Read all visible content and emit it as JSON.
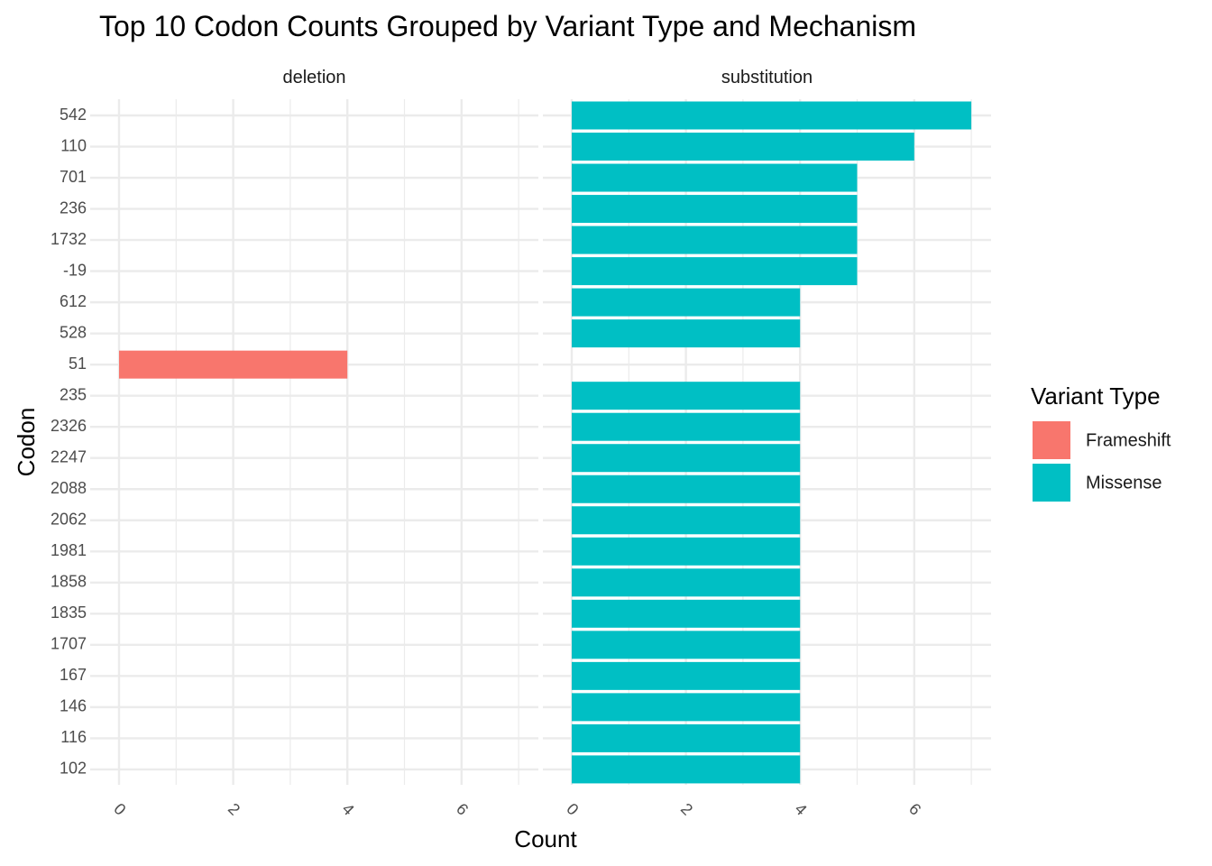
{
  "chart_data": {
    "type": "bar",
    "orientation": "horizontal",
    "title": "Top 10 Codon Counts Grouped by Variant Type and Mechanism",
    "xlabel": "Count",
    "ylabel": "Codon",
    "xlim": [
      0,
      7
    ],
    "x_ticks": [
      "0",
      "2",
      "4",
      "6"
    ],
    "grid": true,
    "legend_position": "right",
    "categories": [
      "542",
      "110",
      "701",
      "236",
      "1732",
      "-19",
      "612",
      "528",
      "51",
      "235",
      "2326",
      "2247",
      "2088",
      "2062",
      "1981",
      "1858",
      "1835",
      "1707",
      "167",
      "146",
      "116",
      "102"
    ],
    "legend": {
      "title": "Variant Type",
      "entries": [
        {
          "name": "Frameshift",
          "color": "#F8766D"
        },
        {
          "name": "Missense",
          "color": "#00BFC4"
        }
      ]
    },
    "facets": [
      {
        "name": "deletion",
        "bars": [
          {
            "codon": "51",
            "value": 4,
            "type": "Frameshift"
          }
        ]
      },
      {
        "name": "substitution",
        "bars": [
          {
            "codon": "542",
            "value": 7,
            "type": "Missense"
          },
          {
            "codon": "110",
            "value": 6,
            "type": "Missense"
          },
          {
            "codon": "701",
            "value": 5,
            "type": "Missense"
          },
          {
            "codon": "236",
            "value": 5,
            "type": "Missense"
          },
          {
            "codon": "1732",
            "value": 5,
            "type": "Missense"
          },
          {
            "codon": "-19",
            "value": 5,
            "type": "Missense"
          },
          {
            "codon": "612",
            "value": 4,
            "type": "Missense"
          },
          {
            "codon": "528",
            "value": 4,
            "type": "Missense"
          },
          {
            "codon": "235",
            "value": 4,
            "type": "Missense"
          },
          {
            "codon": "2326",
            "value": 4,
            "type": "Missense"
          },
          {
            "codon": "2247",
            "value": 4,
            "type": "Missense"
          },
          {
            "codon": "2088",
            "value": 4,
            "type": "Missense"
          },
          {
            "codon": "2062",
            "value": 4,
            "type": "Missense"
          },
          {
            "codon": "1981",
            "value": 4,
            "type": "Missense"
          },
          {
            "codon": "1858",
            "value": 4,
            "type": "Missense"
          },
          {
            "codon": "1835",
            "value": 4,
            "type": "Missense"
          },
          {
            "codon": "1707",
            "value": 4,
            "type": "Missense"
          },
          {
            "codon": "167",
            "value": 4,
            "type": "Missense"
          },
          {
            "codon": "146",
            "value": 4,
            "type": "Missense"
          },
          {
            "codon": "116",
            "value": 4,
            "type": "Missense"
          },
          {
            "codon": "102",
            "value": 4,
            "type": "Missense"
          }
        ]
      }
    ]
  }
}
